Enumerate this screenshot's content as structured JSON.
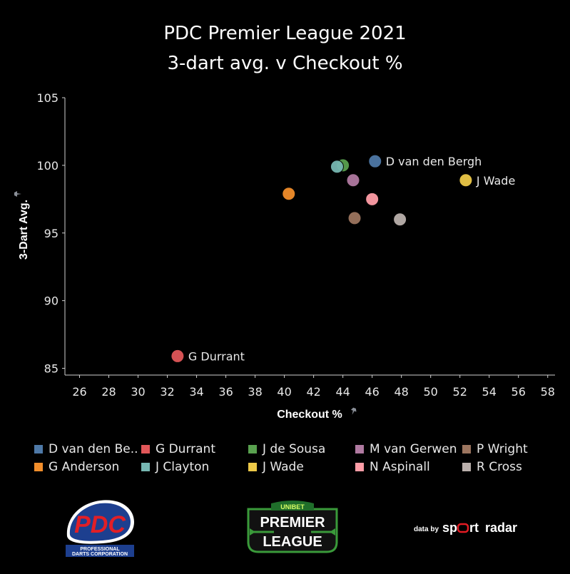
{
  "chart_data": {
    "type": "scatter",
    "title": "PDC Premier League 2021",
    "subtitle": "3-dart avg. v Checkout %",
    "xlabel": "Checkout %",
    "ylabel": "3-Dart Avg.",
    "xlim": [
      25,
      58.5
    ],
    "ylim": [
      84.5,
      105
    ],
    "x_ticks": [
      26,
      28,
      30,
      32,
      34,
      36,
      38,
      40,
      42,
      44,
      46,
      48,
      50,
      52,
      54,
      56,
      58
    ],
    "y_ticks": [
      85,
      90,
      95,
      100,
      105
    ],
    "grid": false,
    "legend_position": "bottom",
    "series": [
      {
        "name": "D van den Be..",
        "label": "D van den Bergh",
        "color": "#4e79a7",
        "x": 46.2,
        "y": 100.3
      },
      {
        "name": "G Durrant",
        "label": "G Durrant",
        "color": "#e15759",
        "x": 32.7,
        "y": 85.9
      },
      {
        "name": "J de Sousa",
        "color": "#59a14f",
        "x": 44.0,
        "y": 100.0
      },
      {
        "name": "M van Gerwen",
        "color": "#b07aa1",
        "x": 44.7,
        "y": 98.9
      },
      {
        "name": "P Wright",
        "color": "#9c755f",
        "x": 44.8,
        "y": 96.1
      },
      {
        "name": "G Anderson",
        "color": "#f28e2b",
        "x": 40.3,
        "y": 97.9
      },
      {
        "name": "J Clayton",
        "color": "#76b7b2",
        "x": 43.6,
        "y": 99.9
      },
      {
        "name": "J Wade",
        "label": "J Wade",
        "color": "#edc948",
        "x": 52.4,
        "y": 98.9
      },
      {
        "name": "N Aspinall",
        "color": "#ff9da7",
        "x": 46.0,
        "y": 97.5
      },
      {
        "name": "R Cross",
        "color": "#bab0ac",
        "x": 47.9,
        "y": 96.0
      }
    ]
  },
  "logos": {
    "pdc": {
      "mark": "PDC",
      "line1": "PROFESSIONAL",
      "line2": "DARTS CORPORATION"
    },
    "premier_league": {
      "top": "UNIBET",
      "line1": "PREMIER",
      "line2": "LEAGUE"
    },
    "sportradar": {
      "prefix": "data by",
      "brand_a": "sp",
      "brand_b": "rt",
      "brand_c": "radar"
    }
  }
}
